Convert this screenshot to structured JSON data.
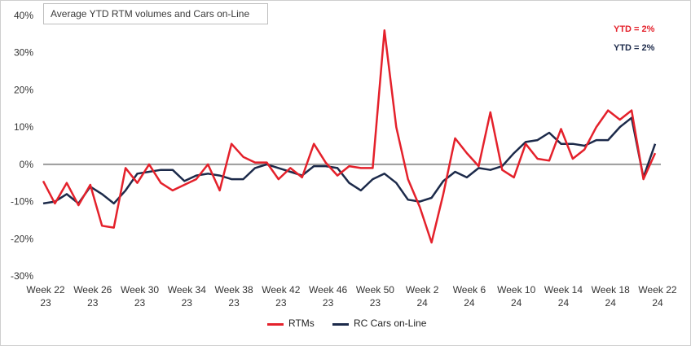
{
  "chart_data": {
    "type": "line",
    "title": "Average YTD RTM volumes and Cars on-Line",
    "ylim": [
      -30,
      40
    ],
    "yticks": [
      "40%",
      "30%",
      "20%",
      "10%",
      "0%",
      "-10%",
      "-20%",
      "-30%"
    ],
    "ytick_values": [
      40,
      30,
      20,
      10,
      0,
      -10,
      -20,
      -30
    ],
    "x_tick_labels": [
      [
        "Week 22",
        "23"
      ],
      [
        "Week 26",
        "23"
      ],
      [
        "Week 30",
        "23"
      ],
      [
        "Week 34",
        "23"
      ],
      [
        "Week 38",
        "23"
      ],
      [
        "Week 42",
        "23"
      ],
      [
        "Week 46",
        "23"
      ],
      [
        "Week 50",
        "23"
      ],
      [
        "Week 2",
        "24"
      ],
      [
        "Week 6",
        "24"
      ],
      [
        "Week 10",
        "24"
      ],
      [
        "Week 14",
        "24"
      ],
      [
        "Week 18",
        "24"
      ],
      [
        "Week 22",
        "24"
      ]
    ],
    "zero_line": true,
    "grid": false,
    "legend_position": "bottom",
    "annotations": [
      {
        "text": "YTD =  2%",
        "color": "#e4212b"
      },
      {
        "text": "YTD =  2%",
        "color": "#1c2a4a"
      }
    ],
    "series": [
      {
        "name": "RTMs",
        "color": "#e4212b",
        "values": [
          -4.5,
          -10.5,
          -5.0,
          -11.0,
          -5.5,
          -16.5,
          -17.0,
          -1.0,
          -5.0,
          0.0,
          -5.0,
          -7.0,
          -5.5,
          -4.0,
          0.0,
          -7.0,
          5.5,
          2.0,
          0.5,
          0.5,
          -4.0,
          -1.0,
          -3.5,
          5.5,
          0.5,
          -3.0,
          -0.5,
          -1.0,
          -1.0,
          36.0,
          10.0,
          -4.0,
          -11.5,
          -21.0,
          -8.0,
          7.0,
          3.0,
          -0.5,
          14.0,
          -1.5,
          -3.5,
          5.5,
          1.5,
          1.0,
          9.5,
          1.5,
          4.0,
          10.0,
          14.5,
          12.0,
          14.5,
          -4.0,
          3.0
        ]
      },
      {
        "name": "RC Cars on-Line",
        "color": "#1c2a4a",
        "values": [
          -10.5,
          -10.0,
          -8.0,
          -10.5,
          -6.0,
          -8.0,
          -10.5,
          -7.0,
          -2.5,
          -2.0,
          -1.5,
          -1.5,
          -4.5,
          -3.0,
          -2.5,
          -3.0,
          -4.0,
          -4.0,
          -1.0,
          0.0,
          -1.0,
          -2.0,
          -3.0,
          -0.5,
          -0.5,
          -1.0,
          -5.0,
          -7.0,
          -4.0,
          -2.5,
          -5.0,
          -9.5,
          -10.0,
          -9.0,
          -4.5,
          -2.0,
          -3.5,
          -1.0,
          -1.5,
          -0.5,
          3.0,
          6.0,
          6.5,
          8.5,
          5.5,
          5.5,
          5.0,
          6.5,
          6.5,
          10.0,
          12.5,
          -3.5,
          5.5
        ]
      }
    ]
  }
}
